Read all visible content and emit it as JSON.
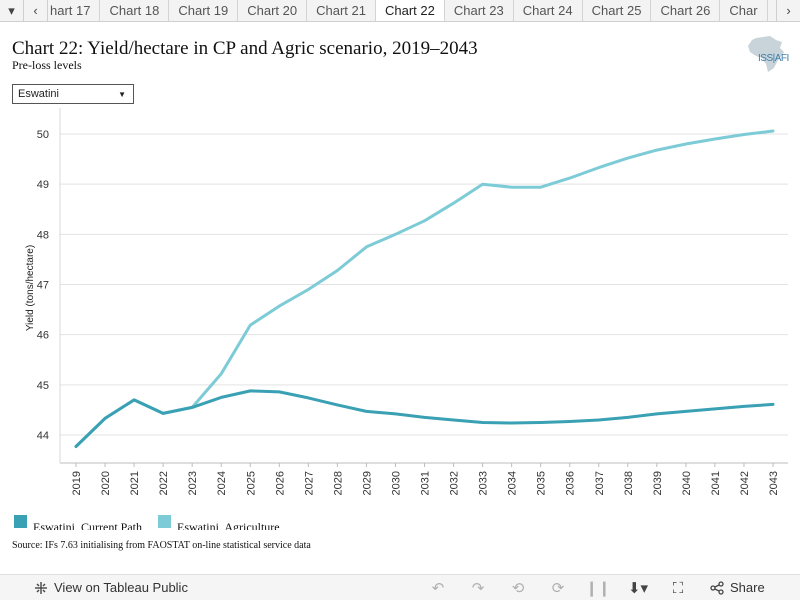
{
  "tabs": {
    "items": [
      {
        "label": "hart 17",
        "active": false
      },
      {
        "label": "Chart 18",
        "active": false
      },
      {
        "label": "Chart 19",
        "active": false
      },
      {
        "label": "Chart 20",
        "active": false
      },
      {
        "label": "Chart 21",
        "active": false
      },
      {
        "label": "Chart 22",
        "active": true
      },
      {
        "label": "Chart 23",
        "active": false
      },
      {
        "label": "Chart 24",
        "active": false
      },
      {
        "label": "Chart 25",
        "active": false
      },
      {
        "label": "Chart 26",
        "active": false
      },
      {
        "label": "Char",
        "active": false
      }
    ],
    "left_nav_icon": "chevron-left-icon",
    "right_nav_icon": "chevron-right-icon",
    "menu_icon": "caret-down-icon"
  },
  "header": {
    "title": "Chart 22: Yield/hectare in CP and Agric scenario, 2019–2043",
    "subtitle": "Pre-loss levels",
    "logo_text": "ISS|AFI"
  },
  "filter": {
    "selected": "Eswatini"
  },
  "chart_data": {
    "type": "line",
    "x": [
      2019,
      2020,
      2021,
      2022,
      2023,
      2024,
      2025,
      2026,
      2027,
      2028,
      2029,
      2030,
      2031,
      2032,
      2033,
      2034,
      2035,
      2036,
      2037,
      2038,
      2039,
      2040,
      2041,
      2042,
      2043
    ],
    "ylabel": "Yield (tons/hectare)",
    "ylim": [
      43.5,
      50.5
    ],
    "yticks": [
      44,
      45,
      46,
      47,
      48,
      49,
      50
    ],
    "grid": true,
    "series": [
      {
        "name": "Eswatini, Current Path",
        "color": "#3aa0b4",
        "values": [
          43.77,
          44.33,
          44.7,
          44.43,
          44.55,
          44.75,
          44.88,
          44.86,
          44.74,
          44.6,
          44.47,
          44.42,
          44.35,
          44.3,
          44.25,
          44.24,
          44.25,
          44.27,
          44.3,
          44.35,
          44.42,
          44.47,
          44.52,
          44.57,
          44.61
        ]
      },
      {
        "name": "Eswatini, Agriculture",
        "color": "#7ccbd6",
        "values": [
          43.77,
          44.33,
          44.7,
          44.43,
          44.55,
          45.22,
          46.19,
          46.57,
          46.9,
          47.28,
          47.75,
          48.0,
          48.27,
          48.62,
          49.0,
          48.94,
          48.94,
          49.12,
          49.33,
          49.52,
          49.68,
          49.8,
          49.9,
          49.99,
          50.06
        ]
      }
    ]
  },
  "legend": {
    "items": [
      {
        "label": "Eswatini, Current Path",
        "color": "#3aa0b4"
      },
      {
        "label": "Eswatini, Agriculture",
        "color": "#7ccbd6"
      }
    ]
  },
  "source": "Source: IFs 7.63 initialising from FAOSTAT on-line statistical service data",
  "footer": {
    "view_label": "View on Tableau Public",
    "share_label": "Share",
    "icons": [
      "undo-icon",
      "redo-icon",
      "revert-icon",
      "refresh-icon",
      "pause-icon",
      "download-icon",
      "fullscreen-icon",
      "share-icon"
    ]
  }
}
